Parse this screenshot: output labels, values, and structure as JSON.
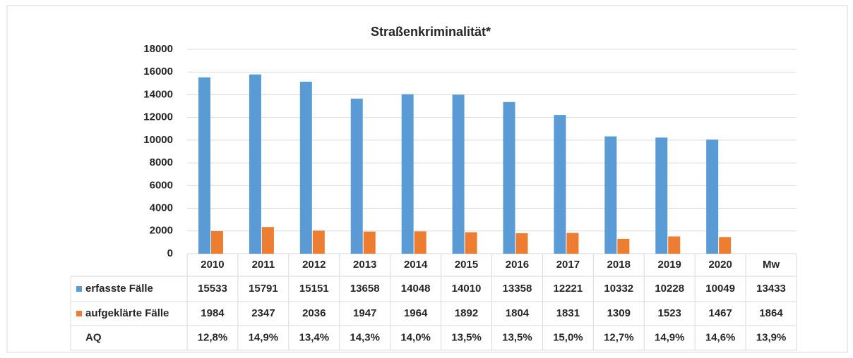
{
  "chart_data": {
    "type": "bar",
    "title": "Straßenkriminalität*",
    "categories": [
      "2010",
      "2011",
      "2012",
      "2013",
      "2014",
      "2015",
      "2016",
      "2017",
      "2018",
      "2019",
      "2020"
    ],
    "series": [
      {
        "name": "erfasste Fälle",
        "color": "#5b9bd5",
        "values": [
          15533,
          15791,
          15151,
          13658,
          14048,
          14010,
          13358,
          12221,
          10332,
          10228,
          10049
        ]
      },
      {
        "name": "aufgeklärte Fälle",
        "color": "#ed7d31",
        "values": [
          1984,
          2347,
          2036,
          1947,
          1964,
          1892,
          1804,
          1831,
          1309,
          1523,
          1467
        ]
      }
    ],
    "ylim": [
      0,
      18000
    ],
    "yticks": [
      0,
      2000,
      4000,
      6000,
      8000,
      10000,
      12000,
      14000,
      16000,
      18000
    ],
    "grid": true,
    "data_table": {
      "mean_label": "Mw",
      "mean_values": [
        13433,
        1864
      ],
      "aq_label": "AQ",
      "aq_values": [
        12.8,
        14.9,
        13.4,
        14.3,
        14.0,
        13.5,
        13.5,
        15.0,
        12.7,
        14.9,
        14.6
      ],
      "aq_value_labels": [
        "12,8%",
        "14,9%",
        "13,4%",
        "14,3%",
        "14,0%",
        "13,5%",
        "13,5%",
        "15,0%",
        "12,7%",
        "14,9%",
        "14,6%"
      ],
      "aq_mean": 13.9,
      "aq_mean_label": "13,9%"
    }
  }
}
